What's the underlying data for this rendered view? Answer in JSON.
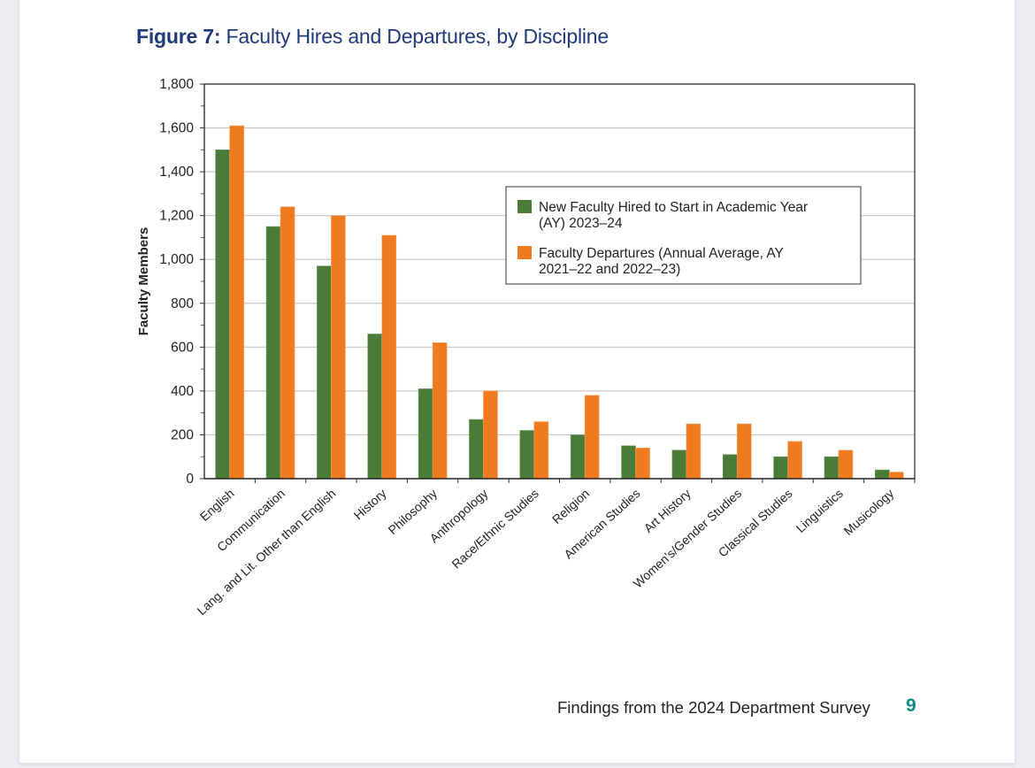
{
  "page": {
    "figure_label": "Figure 7:",
    "figure_title": "Faculty Hires and Departures, by Discipline",
    "footer_text": "Findings from the 2024 Department Survey",
    "page_number": "9"
  },
  "chart_data": {
    "type": "bar",
    "title": "Faculty Hires and Departures, by Discipline",
    "xlabel": "",
    "ylabel": "Faculty Members",
    "ylim": [
      0,
      1800
    ],
    "yticks": [
      0,
      200,
      400,
      600,
      800,
      1000,
      1200,
      1400,
      1600,
      1800
    ],
    "ytick_labels": [
      "0",
      "200",
      "400",
      "600",
      "800",
      "1,000",
      "1,200",
      "1,400",
      "1,600",
      "1,800"
    ],
    "grid": true,
    "legend_position": "top-right",
    "categories": [
      "English",
      "Communication",
      "Lang. and Lit. Other than English",
      "History",
      "Philosophy",
      "Anthropology",
      "Race/Ethnic Studies",
      "Religion",
      "American Studies",
      "Art History",
      "Women's/Gender Studies",
      "Classical Studies",
      "Linguistics",
      "Musicology"
    ],
    "series": [
      {
        "name": "New Faculty Hired to Start in Academic Year (AY) 2023–24",
        "legend_lines": [
          "New Faculty Hired to Start in Academic Year",
          "(AY) 2023–24"
        ],
        "color": "#4a7c37",
        "values": [
          1500,
          1150,
          970,
          660,
          410,
          270,
          220,
          200,
          150,
          130,
          110,
          100,
          100,
          40
        ]
      },
      {
        "name": "Faculty Departures (Annual Average, AY 2021–22 and 2022–23)",
        "legend_lines": [
          "Faculty Departures (Annual Average, AY",
          "2021–22 and 2022–23)"
        ],
        "color": "#f07a1e",
        "values": [
          1610,
          1240,
          1200,
          1110,
          620,
          400,
          260,
          380,
          140,
          250,
          250,
          170,
          130,
          30
        ]
      }
    ]
  }
}
